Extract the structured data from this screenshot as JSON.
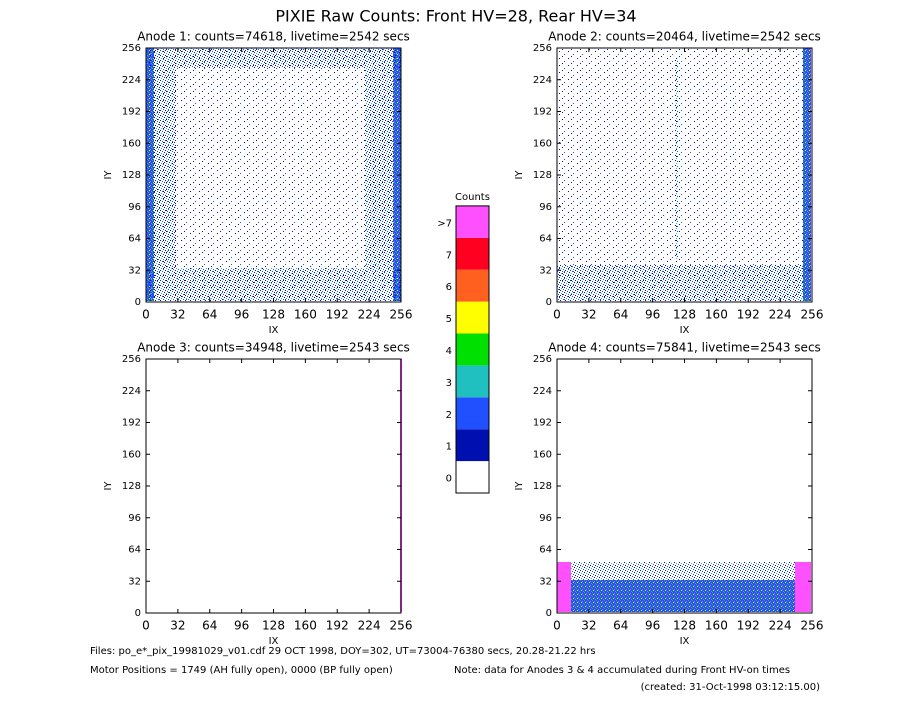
{
  "title": "PIXIE Raw Counts:  Front HV=28, Rear HV=34",
  "chart_data": [
    {
      "type": "heatmap",
      "title": "Anode 1: counts=74618, livetime=2542 secs",
      "xlabel": "IX",
      "ylabel": "IY",
      "xlim": [
        0,
        256
      ],
      "ylim": [
        0,
        256
      ],
      "xticks": [
        0,
        32,
        64,
        96,
        128,
        160,
        192,
        224,
        256
      ],
      "yticks": [
        0,
        32,
        64,
        96,
        128,
        160,
        192,
        224,
        256
      ]
    },
    {
      "type": "heatmap",
      "title": "Anode 2: counts=20464, livetime=2542 secs",
      "xlabel": "IX",
      "ylabel": "IY",
      "xlim": [
        0,
        256
      ],
      "ylim": [
        0,
        256
      ],
      "xticks": [
        0,
        32,
        64,
        96,
        128,
        160,
        192,
        224,
        256
      ],
      "yticks": [
        0,
        32,
        64,
        96,
        128,
        160,
        192,
        224,
        256
      ]
    },
    {
      "type": "heatmap",
      "title": "Anode 3: counts=34948, livetime=2543 secs",
      "xlabel": "IX",
      "ylabel": "IY",
      "xlim": [
        0,
        256
      ],
      "ylim": [
        0,
        256
      ],
      "xticks": [
        0,
        32,
        64,
        96,
        128,
        160,
        192,
        224,
        256
      ],
      "yticks": [
        0,
        32,
        64,
        96,
        128,
        160,
        192,
        224,
        256
      ]
    },
    {
      "type": "heatmap",
      "title": "Anode 4: counts=75841, livetime=2543 secs",
      "xlabel": "IX",
      "ylabel": "IY",
      "xlim": [
        0,
        256
      ],
      "ylim": [
        0,
        256
      ],
      "xticks": [
        0,
        32,
        64,
        96,
        128,
        160,
        192,
        224,
        256
      ],
      "yticks": [
        0,
        32,
        64,
        96,
        128,
        160,
        192,
        224,
        256
      ]
    },
    {
      "type": "colorbar",
      "title": "Counts",
      "categories": [
        "0",
        "1",
        "2",
        "3",
        "4",
        "5",
        "6",
        "7",
        ">7"
      ],
      "colors": [
        "#ffffff",
        "#0010b0",
        "#2050ff",
        "#20c0c0",
        "#00e000",
        "#ffff00",
        "#ff6020",
        "#ff0020",
        "#ff50ff"
      ]
    }
  ],
  "footer": {
    "files": "Files: po_e*_pix_19981029_v01.cdf    29 OCT 1998, DOY=302, UT=73004-76380 secs, 20.28-21.22 hrs",
    "motor": "Motor Positions = 1749 (AH fully open), 0000 (BP fully open)",
    "note": "Note: data for Anodes 3 & 4 accumulated during Front HV-on times",
    "created": "(created: 31-Oct-1998 03:12:15.00)"
  }
}
